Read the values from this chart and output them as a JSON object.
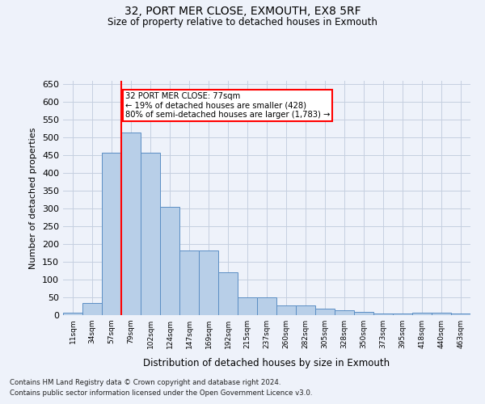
{
  "title1": "32, PORT MER CLOSE, EXMOUTH, EX8 5RF",
  "title2": "Size of property relative to detached houses in Exmouth",
  "xlabel": "Distribution of detached houses by size in Exmouth",
  "ylabel": "Number of detached properties",
  "categories": [
    "11sqm",
    "34sqm",
    "57sqm",
    "79sqm",
    "102sqm",
    "124sqm",
    "147sqm",
    "169sqm",
    "192sqm",
    "215sqm",
    "237sqm",
    "260sqm",
    "282sqm",
    "305sqm",
    "328sqm",
    "350sqm",
    "373sqm",
    "395sqm",
    "418sqm",
    "440sqm",
    "463sqm"
  ],
  "values": [
    7,
    35,
    457,
    515,
    457,
    305,
    181,
    181,
    120,
    50,
    50,
    27,
    27,
    18,
    13,
    10,
    5,
    5,
    7,
    7,
    5
  ],
  "bar_color": "#b8cfe8",
  "bar_edge_color": "#5b8ec4",
  "annotation_text": "32 PORT MER CLOSE: 77sqm\n← 19% of detached houses are smaller (428)\n80% of semi-detached houses are larger (1,783) →",
  "annotation_box_color": "white",
  "annotation_box_edge_color": "red",
  "vline_color": "red",
  "ylim": [
    0,
    660
  ],
  "yticks": [
    0,
    50,
    100,
    150,
    200,
    250,
    300,
    350,
    400,
    450,
    500,
    550,
    600,
    650
  ],
  "footnote1": "Contains HM Land Registry data © Crown copyright and database right 2024.",
  "footnote2": "Contains public sector information licensed under the Open Government Licence v3.0.",
  "bg_color": "#eef2fa",
  "grid_color": "#c5cfe0"
}
